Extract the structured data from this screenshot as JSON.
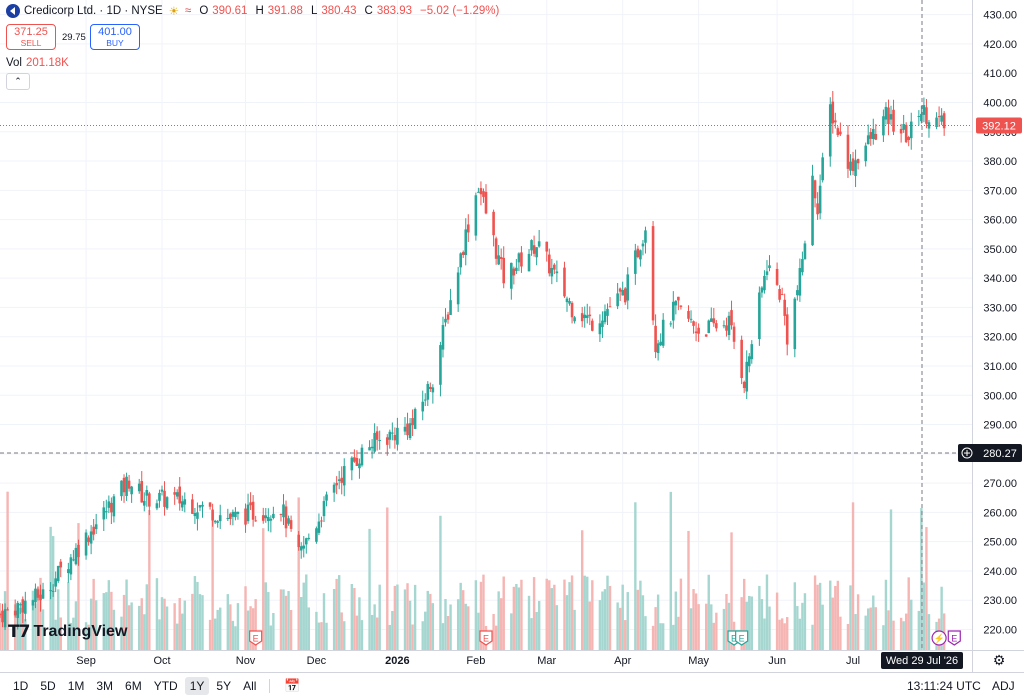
{
  "header": {
    "symbol": "Credicorp Ltd. · 1D · NYSE",
    "open_label": "O",
    "open": "390.61",
    "high_label": "H",
    "high": "391.88",
    "low_label": "L",
    "low": "380.43",
    "close_label": "C",
    "close": "383.93",
    "change": "−5.02 (−1.29%)"
  },
  "trade": {
    "sell_price": "371.25",
    "sell_label": "SELL",
    "spread": "29.75",
    "buy_price": "401.00",
    "buy_label": "BUY"
  },
  "volume_legend": {
    "label": "Vol",
    "value": "201.18K"
  },
  "watermark": "TradingView",
  "crosshair": {
    "price_label": "280.27",
    "date_label": "Wed 29 Jul '26"
  },
  "last_price_label": "392.12",
  "event_markers": [
    {
      "type": "E",
      "date": "2025-11-07",
      "style": "red"
    },
    {
      "type": "E",
      "date": "2026-02-06",
      "style": "red"
    },
    {
      "type": "E",
      "date": "2026-05-15",
      "style": "green"
    },
    {
      "type": "E",
      "date": "2026-05-18",
      "style": "green"
    },
    {
      "type": "⚡",
      "date": "2026-08-04",
      "style": "purple"
    },
    {
      "type": "E",
      "date": "2026-08-10",
      "style": "purple"
    }
  ],
  "bottom_bar": {
    "ranges": [
      "1D",
      "5D",
      "1M",
      "3M",
      "6M",
      "YTD",
      "1Y",
      "5Y",
      "All"
    ],
    "active_range": "1Y",
    "time": "13:11:24 UTC",
    "adj": "ADJ"
  },
  "colors": {
    "up": "#26a69a",
    "down": "#ef5350",
    "up_vol": "#a5d6d0",
    "down_vol": "#f5b5b3",
    "accent": "#2962ff"
  },
  "chart_data": {
    "type": "candlestick",
    "title": "Credicorp Ltd. · 1D · NYSE",
    "price_axis": {
      "ylim": [
        213,
        435
      ],
      "ticks": [
        220,
        230,
        240,
        250,
        260,
        270,
        280,
        290,
        300,
        310,
        320,
        330,
        340,
        350,
        360,
        370,
        380,
        390,
        400,
        410,
        420,
        430
      ]
    },
    "time_axis": {
      "xlim": [
        "2025-07-29",
        "2026-08-17"
      ],
      "ticks": [
        {
          "label": "Sep",
          "date": "2025-09-01",
          "bold": false
        },
        {
          "label": "Oct",
          "date": "2025-10-01",
          "bold": false
        },
        {
          "label": "Nov",
          "date": "2025-11-03",
          "bold": false
        },
        {
          "label": "Dec",
          "date": "2025-12-01",
          "bold": false
        },
        {
          "label": "2026",
          "date": "2026-01-02",
          "bold": true
        },
        {
          "label": "Feb",
          "date": "2026-02-02",
          "bold": false
        },
        {
          "label": "Mar",
          "date": "2026-03-02",
          "bold": false
        },
        {
          "label": "Apr",
          "date": "2026-04-01",
          "bold": false
        },
        {
          "label": "May",
          "date": "2026-05-01",
          "bold": false
        },
        {
          "label": "Jun",
          "date": "2026-06-01",
          "bold": false
        },
        {
          "label": "Jul",
          "date": "2026-07-01",
          "bold": false
        }
      ]
    },
    "grid": true,
    "volume_panel": true,
    "anchors": [
      {
        "date": "2025-07-29",
        "close": 225
      },
      {
        "date": "2025-08-15",
        "close": 232
      },
      {
        "date": "2025-09-10",
        "close": 262
      },
      {
        "date": "2025-09-18",
        "close": 271
      },
      {
        "date": "2025-09-24",
        "close": 265
      },
      {
        "date": "2025-10-10",
        "close": 264
      },
      {
        "date": "2025-10-28",
        "close": 258
      },
      {
        "date": "2025-11-17",
        "close": 262
      },
      {
        "date": "2025-11-24",
        "close": 245
      },
      {
        "date": "2025-12-02",
        "close": 258
      },
      {
        "date": "2025-12-10",
        "close": 272
      },
      {
        "date": "2025-12-22",
        "close": 283
      },
      {
        "date": "2026-01-08",
        "close": 290
      },
      {
        "date": "2026-01-16",
        "close": 306
      },
      {
        "date": "2026-01-29",
        "close": 355
      },
      {
        "date": "2026-02-03",
        "close": 372
      },
      {
        "date": "2026-02-13",
        "close": 340
      },
      {
        "date": "2026-02-26",
        "close": 352
      },
      {
        "date": "2026-03-12",
        "close": 330
      },
      {
        "date": "2026-03-20",
        "close": 325
      },
      {
        "date": "2026-04-02",
        "close": 335
      },
      {
        "date": "2026-04-10",
        "close": 358
      },
      {
        "date": "2026-04-14",
        "close": 318
      },
      {
        "date": "2026-04-22",
        "close": 330
      },
      {
        "date": "2026-05-01",
        "close": 322
      },
      {
        "date": "2026-05-13",
        "close": 325
      },
      {
        "date": "2026-05-19",
        "close": 305
      },
      {
        "date": "2026-05-28",
        "close": 345
      },
      {
        "date": "2026-06-03",
        "close": 333
      },
      {
        "date": "2026-06-05",
        "close": 320
      },
      {
        "date": "2026-06-10",
        "close": 340
      },
      {
        "date": "2026-06-15",
        "close": 373
      },
      {
        "date": "2026-06-17",
        "close": 365
      },
      {
        "date": "2026-06-22",
        "close": 398
      },
      {
        "date": "2026-06-30",
        "close": 378
      },
      {
        "date": "2026-07-14",
        "close": 395
      },
      {
        "date": "2026-07-23",
        "close": 388
      },
      {
        "date": "2026-07-27",
        "close": 398
      },
      {
        "date": "2026-08-06",
        "close": 392
      }
    ]
  }
}
